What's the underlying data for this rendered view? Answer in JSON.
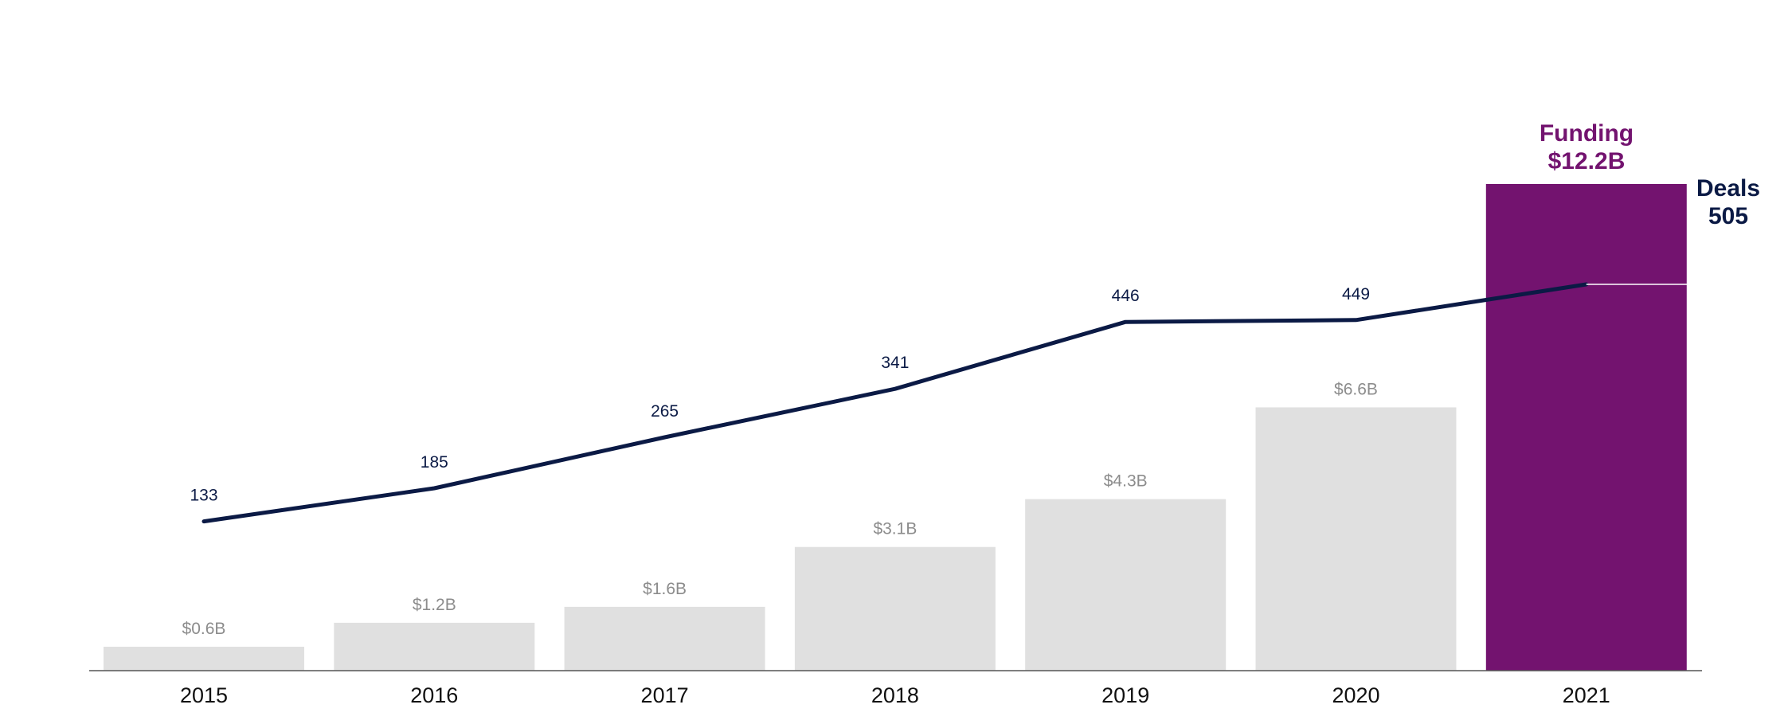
{
  "chart_data": {
    "type": "bar",
    "categories": [
      "2015",
      "2016",
      "2017",
      "2018",
      "2019",
      "2020",
      "2021"
    ],
    "series": [
      {
        "name": "Funding",
        "type": "bar",
        "values": [
          0.6,
          1.2,
          1.6,
          3.1,
          4.3,
          6.6,
          12.2
        ],
        "labels": [
          "$0.6B",
          "$1.2B",
          "$1.6B",
          "$3.1B",
          "$4.3B",
          "$6.6B",
          "$12.2B"
        ]
      },
      {
        "name": "Deals",
        "type": "line",
        "values": [
          133,
          185,
          265,
          341,
          446,
          449,
          505
        ],
        "labels": [
          "133",
          "185",
          "265",
          "341",
          "446",
          "449",
          "505"
        ]
      }
    ],
    "callouts": {
      "funding": {
        "title": "Funding",
        "value": "$12.2B"
      },
      "deals": {
        "title": "Deals",
        "value": "505"
      }
    },
    "highlight_index": 6,
    "colors": {
      "bar": "#e0e0e0",
      "bar_highlight": "#73136f",
      "line": "#0b1a45",
      "bar_label": "#8c8c8c",
      "axis": "#555555"
    },
    "title": "",
    "xlabel": "",
    "ylabel": "",
    "grid": false
  }
}
